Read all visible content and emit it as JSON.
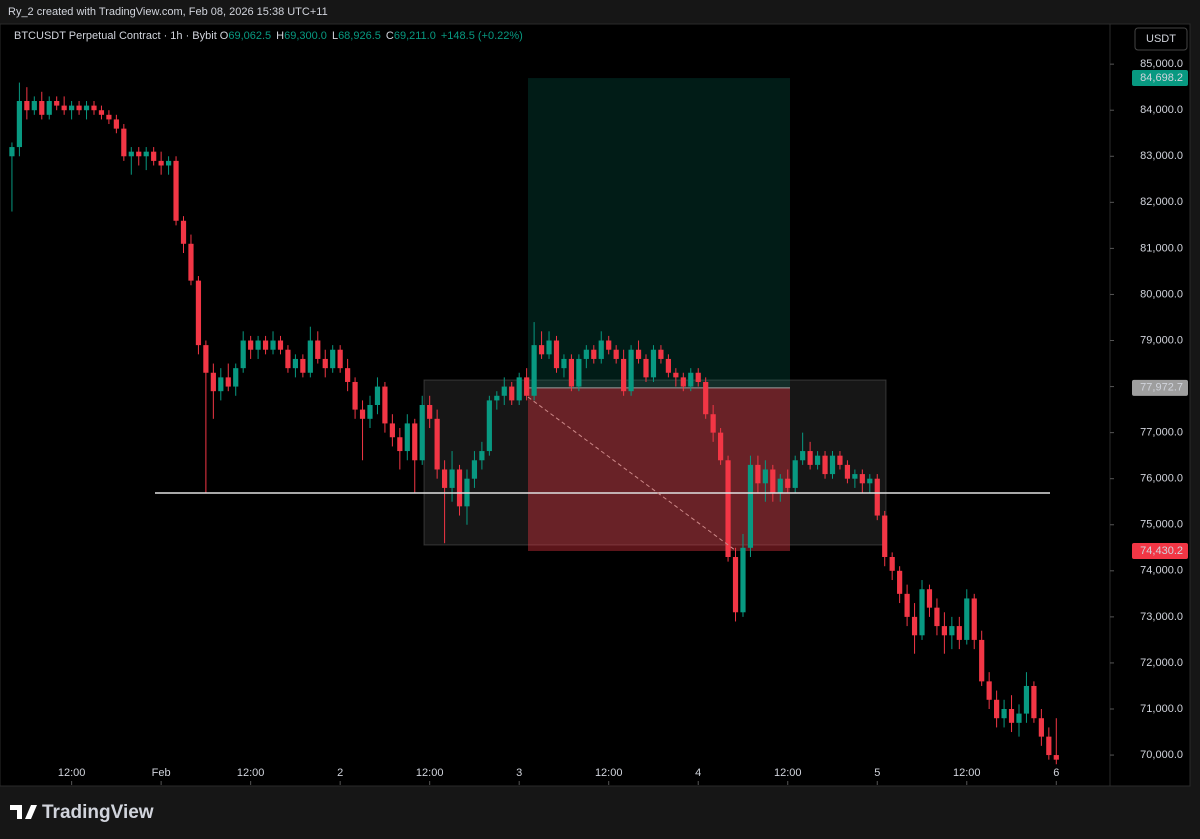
{
  "header": {
    "credit": "Ry_2 created with TradingView.com, Feb 08, 2026 15:38 UTC+11"
  },
  "chart_data": {
    "type": "candlestick",
    "symbol": "BTCUSDT Perpetual Contract · 1h · Bybit",
    "ohlc_legend": [
      {
        "key": "O",
        "value": "69,062.5"
      },
      {
        "key": "H",
        "value": "69,300.0"
      },
      {
        "key": "L",
        "value": "68,926.5"
      },
      {
        "key": "C",
        "value": "69,211.0"
      }
    ],
    "change": "+148.5 (+0.22%)",
    "currency": "USDT",
    "up_color": "#089981",
    "down_color": "#f23645",
    "candles": [
      [
        83000,
        83300,
        81800,
        83200
      ],
      [
        83200,
        84600,
        83000,
        84200
      ],
      [
        84200,
        84500,
        83800,
        84000
      ],
      [
        84000,
        84300,
        83900,
        84200
      ],
      [
        84200,
        84400,
        83800,
        83900
      ],
      [
        83900,
        84300,
        83800,
        84200
      ],
      [
        84200,
        84300,
        84000,
        84100
      ],
      [
        84100,
        84300,
        83900,
        84000
      ],
      [
        84000,
        84200,
        83800,
        84100
      ],
      [
        84100,
        84200,
        83900,
        84000
      ],
      [
        84000,
        84200,
        83800,
        84100
      ],
      [
        84100,
        84200,
        83900,
        84000
      ],
      [
        84000,
        84100,
        83800,
        83900
      ],
      [
        83900,
        84000,
        83700,
        83800
      ],
      [
        83800,
        83900,
        83500,
        83600
      ],
      [
        83600,
        83700,
        82900,
        83000
      ],
      [
        83000,
        83200,
        82600,
        83100
      ],
      [
        83100,
        83200,
        82800,
        83000
      ],
      [
        83000,
        83200,
        82700,
        83100
      ],
      [
        83100,
        83200,
        82800,
        82900
      ],
      [
        82900,
        83100,
        82600,
        82800
      ],
      [
        82800,
        83000,
        82600,
        82900
      ],
      [
        82900,
        83000,
        81500,
        81600
      ],
      [
        81600,
        81700,
        80900,
        81100
      ],
      [
        81100,
        81300,
        80200,
        80300
      ],
      [
        80300,
        80400,
        78700,
        78900
      ],
      [
        78900,
        79000,
        75700,
        78300
      ],
      [
        78300,
        78500,
        77300,
        77900
      ],
      [
        77900,
        78400,
        77700,
        78200
      ],
      [
        78200,
        78500,
        77900,
        78000
      ],
      [
        78000,
        78500,
        77800,
        78400
      ],
      [
        78400,
        79200,
        78300,
        79000
      ],
      [
        79000,
        79100,
        78600,
        78800
      ],
      [
        78800,
        79100,
        78600,
        79000
      ],
      [
        79000,
        79100,
        78700,
        78800
      ],
      [
        78800,
        79200,
        78700,
        79000
      ],
      [
        79000,
        79100,
        78700,
        78800
      ],
      [
        78800,
        78900,
        78300,
        78400
      ],
      [
        78400,
        78700,
        78200,
        78600
      ],
      [
        78600,
        78700,
        78200,
        78300
      ],
      [
        78300,
        79300,
        78200,
        79000
      ],
      [
        79000,
        79200,
        78500,
        78600
      ],
      [
        78600,
        78800,
        78200,
        78400
      ],
      [
        78400,
        78900,
        78300,
        78800
      ],
      [
        78800,
        78900,
        78300,
        78400
      ],
      [
        78400,
        78600,
        77900,
        78100
      ],
      [
        78100,
        78200,
        77300,
        77500
      ],
      [
        77500,
        77700,
        76400,
        77300
      ],
      [
        77300,
        77800,
        77100,
        77600
      ],
      [
        77600,
        78200,
        77400,
        78000
      ],
      [
        78000,
        78100,
        77000,
        77200
      ],
      [
        77200,
        77400,
        76700,
        76900
      ],
      [
        76900,
        77100,
        76200,
        76600
      ],
      [
        76600,
        77400,
        76400,
        77200
      ],
      [
        77200,
        77300,
        75700,
        76400
      ],
      [
        76400,
        77800,
        76300,
        77600
      ],
      [
        77600,
        77800,
        77100,
        77300
      ],
      [
        77300,
        77500,
        76000,
        76200
      ],
      [
        76200,
        76400,
        74600,
        75800
      ],
      [
        75800,
        76600,
        75500,
        76200
      ],
      [
        76200,
        76300,
        75200,
        75400
      ],
      [
        75400,
        76200,
        75000,
        76000
      ],
      [
        76000,
        76600,
        75800,
        76400
      ],
      [
        76400,
        76800,
        76200,
        76600
      ],
      [
        76600,
        77800,
        76500,
        77700
      ],
      [
        77700,
        77900,
        77500,
        77800
      ],
      [
        77800,
        78200,
        77600,
        78000
      ],
      [
        78000,
        78100,
        77600,
        77700
      ],
      [
        77700,
        78300,
        77600,
        78200
      ],
      [
        78200,
        78400,
        77700,
        77800
      ],
      [
        77800,
        79400,
        77700,
        78900
      ],
      [
        78900,
        79200,
        78600,
        78700
      ],
      [
        78700,
        79200,
        78600,
        79000
      ],
      [
        79000,
        79100,
        78300,
        78400
      ],
      [
        78400,
        78700,
        78200,
        78600
      ],
      [
        78600,
        78700,
        77900,
        78000
      ],
      [
        78000,
        78700,
        77900,
        78600
      ],
      [
        78600,
        78900,
        78400,
        78800
      ],
      [
        78800,
        78900,
        78500,
        78600
      ],
      [
        78600,
        79200,
        78500,
        79000
      ],
      [
        79000,
        79100,
        78700,
        78800
      ],
      [
        78800,
        78900,
        78500,
        78600
      ],
      [
        78600,
        78800,
        77800,
        77900
      ],
      [
        77900,
        78900,
        77800,
        78800
      ],
      [
        78800,
        79000,
        78500,
        78600
      ],
      [
        78600,
        78700,
        78100,
        78200
      ],
      [
        78200,
        78900,
        78100,
        78800
      ],
      [
        78800,
        78900,
        78500,
        78600
      ],
      [
        78600,
        78700,
        78200,
        78300
      ],
      [
        78300,
        78400,
        78000,
        78200
      ],
      [
        78200,
        78300,
        77900,
        78000
      ],
      [
        78000,
        78400,
        77900,
        78300
      ],
      [
        78300,
        78400,
        78000,
        78100
      ],
      [
        78100,
        78200,
        77300,
        77400
      ],
      [
        77400,
        77600,
        76800,
        77000
      ],
      [
        77000,
        77100,
        76300,
        76400
      ],
      [
        76400,
        76500,
        74200,
        74300
      ],
      [
        74300,
        74500,
        72900,
        73100
      ],
      [
        73100,
        74800,
        73000,
        74500
      ],
      [
        74500,
        76500,
        74300,
        76300
      ],
      [
        76300,
        76500,
        75700,
        75900
      ],
      [
        75900,
        76400,
        75500,
        76200
      ],
      [
        76200,
        76300,
        75500,
        75700
      ],
      [
        75700,
        76100,
        75500,
        76000
      ],
      [
        76000,
        76200,
        75700,
        75800
      ],
      [
        75800,
        76500,
        75700,
        76400
      ],
      [
        76400,
        77000,
        76300,
        76600
      ],
      [
        76600,
        76800,
        76200,
        76300
      ],
      [
        76300,
        76600,
        76200,
        76500
      ],
      [
        76500,
        76600,
        76000,
        76100
      ],
      [
        76100,
        76600,
        76000,
        76500
      ],
      [
        76500,
        76600,
        76200,
        76300
      ],
      [
        76300,
        76400,
        75900,
        76000
      ],
      [
        76000,
        76200,
        75800,
        76100
      ],
      [
        76100,
        76200,
        75700,
        75900
      ],
      [
        75900,
        76100,
        75700,
        76000
      ],
      [
        76000,
        76100,
        75100,
        75200
      ],
      [
        75200,
        75300,
        74100,
        74300
      ],
      [
        74300,
        74400,
        73800,
        74000
      ],
      [
        74000,
        74100,
        73300,
        73500
      ],
      [
        73500,
        73700,
        72800,
        73000
      ],
      [
        73000,
        73300,
        72200,
        72600
      ],
      [
        72600,
        73800,
        72500,
        73600
      ],
      [
        73600,
        73700,
        73000,
        73200
      ],
      [
        73200,
        73400,
        72600,
        72800
      ],
      [
        72800,
        73100,
        72200,
        72600
      ],
      [
        72600,
        73000,
        72300,
        72800
      ],
      [
        72800,
        73000,
        72300,
        72500
      ],
      [
        72500,
        73600,
        72400,
        73400
      ],
      [
        73400,
        73500,
        72300,
        72500
      ],
      [
        72500,
        72700,
        71500,
        71600
      ],
      [
        71600,
        71800,
        71000,
        71200
      ],
      [
        71200,
        71400,
        70600,
        70800
      ],
      [
        70800,
        71200,
        70600,
        71000
      ],
      [
        71000,
        71300,
        70500,
        70700
      ],
      [
        70700,
        71100,
        70400,
        70900
      ],
      [
        70900,
        71800,
        70700,
        71500
      ],
      [
        71500,
        71600,
        70700,
        70800
      ],
      [
        70800,
        71000,
        70200,
        70400
      ],
      [
        70400,
        70600,
        69900,
        70000
      ],
      [
        70000,
        70800,
        69800,
        69900
      ]
    ],
    "xlim": [
      -1.6,
      147.2
    ],
    "xticks": [
      {
        "value": 8,
        "label": "12:00"
      },
      {
        "value": 20,
        "label": "Feb"
      },
      {
        "value": 32,
        "label": "12:00"
      },
      {
        "value": 44,
        "label": "2"
      },
      {
        "value": 56,
        "label": "12:00"
      },
      {
        "value": 68,
        "label": "3"
      },
      {
        "value": 80,
        "label": "12:00"
      },
      {
        "value": 92,
        "label": "4"
      },
      {
        "value": 104,
        "label": "12:00"
      },
      {
        "value": 116,
        "label": "5"
      },
      {
        "value": 128,
        "label": "12:00"
      },
      {
        "value": 140,
        "label": "6"
      }
    ],
    "ylim": [
      69350,
      85850
    ],
    "yticks": [
      {
        "value": 70000,
        "label": "70,000.0"
      },
      {
        "value": 71000,
        "label": "71,000.0"
      },
      {
        "value": 72000,
        "label": "72,000.0"
      },
      {
        "value": 73000,
        "label": "73,000.0"
      },
      {
        "value": 74000,
        "label": "74,000.0"
      },
      {
        "value": 75000,
        "label": "75,000.0"
      },
      {
        "value": 76000,
        "label": "76,000.0"
      },
      {
        "value": 77000,
        "label": "77,000.0"
      },
      {
        "value": 78000,
        "label": "78,000.0"
      },
      {
        "value": 79000,
        "label": "79,000.0"
      },
      {
        "value": 80000,
        "label": "80,000.0"
      },
      {
        "value": 81000,
        "label": "81,000.0"
      },
      {
        "value": 82000,
        "label": "82,000.0"
      },
      {
        "value": 83000,
        "label": "83,000.0"
      },
      {
        "value": 84000,
        "label": "84,000.0"
      },
      {
        "value": 85000,
        "label": "85,000.0"
      }
    ],
    "price_labels": [
      {
        "value": 84698.2,
        "label": "84,698.2",
        "color": "#089981"
      },
      {
        "value": 77972.7,
        "label": "77,972.7",
        "color": "#9e9e9e"
      },
      {
        "value": 74430.2,
        "label": "74,430.2",
        "color": "#f23645"
      }
    ]
  },
  "footer": {
    "brand": "TradingView"
  }
}
